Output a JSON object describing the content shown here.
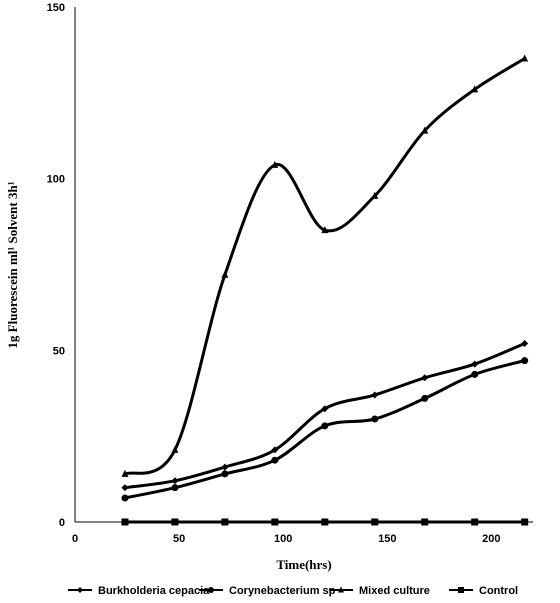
{
  "chart_data": {
    "type": "line",
    "title": "",
    "xlabel": "Time(hrs)",
    "ylabel": "1g   Fluorescein ml¹ Solvent 3h¹",
    "xlim": [
      0,
      220
    ],
    "ylim": [
      0,
      150
    ],
    "x_ticks": [
      0,
      50,
      100,
      150,
      200
    ],
    "y_ticks": [
      0,
      50,
      100,
      150
    ],
    "grid": false,
    "legend_position": "bottom",
    "x": [
      24,
      48,
      72,
      96,
      120,
      144,
      168,
      192,
      216
    ],
    "series": [
      {
        "name": "Burkholderia cepacia",
        "marker": "diamond",
        "values": [
          10,
          12,
          16,
          21,
          33,
          37,
          42,
          46,
          52
        ]
      },
      {
        "name": "Corynebacterium sp",
        "marker": "circle",
        "values": [
          7,
          10,
          14,
          18,
          28,
          30,
          36,
          43,
          47
        ]
      },
      {
        "name": "Mixed culture",
        "marker": "triangle",
        "values": [
          14,
          21,
          72,
          104,
          85,
          95,
          114,
          126,
          135
        ]
      },
      {
        "name": "Control",
        "marker": "square",
        "values": [
          0,
          0,
          0,
          0,
          0,
          0,
          0,
          0,
          0
        ]
      }
    ]
  }
}
